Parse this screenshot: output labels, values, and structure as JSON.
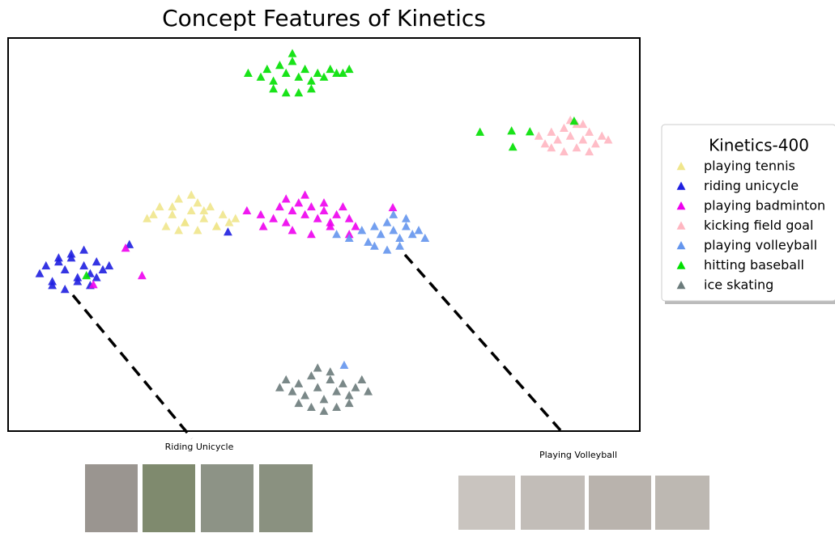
{
  "chart_data": {
    "type": "scatter",
    "title": "Concept Features of Kinetics",
    "xlim": [
      0,
      100
    ],
    "ylim": [
      0,
      100
    ],
    "legend": "outside-right",
    "legend_title": "Kinetics-400",
    "marker": "triangle",
    "annotations": [
      "Riding Unicycle",
      "Playing Volleyball"
    ],
    "series": [
      {
        "name": "playing tennis",
        "color": "#f0e68c",
        "x": [
          22,
          24,
          25,
          26,
          27,
          28,
          29,
          30,
          31,
          32,
          33,
          34,
          35,
          36,
          23,
          27,
          30,
          33,
          29,
          26,
          31,
          28
        ],
        "values": [
          54,
          57,
          52,
          55,
          59,
          53,
          56,
          58,
          54,
          57,
          52,
          55,
          53,
          54,
          55,
          51,
          51,
          52,
          60,
          57,
          56,
          53
        ]
      },
      {
        "name": "riding unicycle",
        "color": "#1f1fe0",
        "x": [
          5,
          6,
          7,
          8,
          9,
          10,
          11,
          12,
          13,
          14,
          15,
          16,
          7,
          9,
          11,
          13,
          10,
          12,
          8,
          14,
          34.8,
          19.2
        ],
        "values": [
          40,
          42,
          38,
          43,
          41,
          44,
          39,
          42,
          40,
          43,
          41,
          42,
          37,
          36,
          38,
          37,
          45,
          46,
          44,
          39,
          50.6,
          47.4
        ]
      },
      {
        "name": "playing badminton",
        "color": "#ee00ee",
        "x": [
          40,
          42,
          43,
          44,
          45,
          46,
          47,
          48,
          49,
          50,
          51,
          52,
          53,
          54,
          55,
          45,
          48,
          51,
          44,
          47,
          50,
          18.6,
          21.2,
          13.5,
          60.9,
          37.8,
          40.4,
          54
        ],
        "values": [
          55,
          54,
          57,
          53,
          56,
          58,
          55,
          57,
          54,
          56,
          53,
          55,
          57,
          54,
          52,
          51,
          50,
          52,
          59,
          60,
          58,
          46.5,
          39.5,
          37.2,
          56.8,
          56,
          52,
          50
        ]
      },
      {
        "name": "kicking field goal",
        "color": "#ffb6c1",
        "x": [
          84,
          85,
          86,
          87,
          88,
          89,
          90,
          91,
          92,
          93,
          94,
          95,
          86,
          88,
          90,
          92,
          89,
          91
        ],
        "values": [
          75,
          73,
          76,
          74,
          77,
          75,
          78,
          74,
          76,
          73,
          75,
          74,
          72,
          71,
          72,
          71,
          79,
          78
        ]
      },
      {
        "name": "playing volleyball",
        "color": "#6495ed",
        "x": [
          52,
          54,
          56,
          57,
          58,
          59,
          60,
          61,
          62,
          63,
          64,
          65,
          66,
          58,
          60,
          62,
          61,
          63,
          53.2
        ],
        "values": [
          50,
          49,
          51,
          48,
          52,
          50,
          53,
          51,
          49,
          52,
          50,
          51,
          49,
          47,
          46,
          47,
          55,
          54,
          16.7
        ]
      },
      {
        "name": "hitting baseball",
        "color": "#00e000",
        "x": [
          38,
          40,
          41,
          42,
          43,
          44,
          45,
          46,
          47,
          48,
          49,
          50,
          51,
          52,
          53,
          54,
          42,
          44,
          46,
          48,
          45,
          74.7,
          79.7,
          79.9,
          82.6,
          89.6,
          12.4
        ],
        "values": [
          91,
          90,
          92,
          89,
          93,
          91,
          94,
          90,
          92,
          89,
          91,
          90,
          92,
          91,
          91,
          92,
          87,
          86,
          86,
          87,
          96,
          76,
          76.3,
          72.2,
          76.1,
          78.8,
          39.5
        ]
      },
      {
        "name": "ice skating",
        "color": "#6b7b7b",
        "x": [
          43,
          44,
          45,
          46,
          47,
          48,
          49,
          50,
          51,
          52,
          53,
          54,
          55,
          56,
          57,
          46,
          48,
          50,
          52,
          54,
          49,
          51
        ],
        "values": [
          11,
          13,
          10,
          12,
          9,
          14,
          11,
          8,
          13,
          10,
          12,
          9,
          11,
          13,
          10,
          7,
          6,
          5,
          6,
          7,
          16,
          15
        ]
      }
    ]
  }
}
